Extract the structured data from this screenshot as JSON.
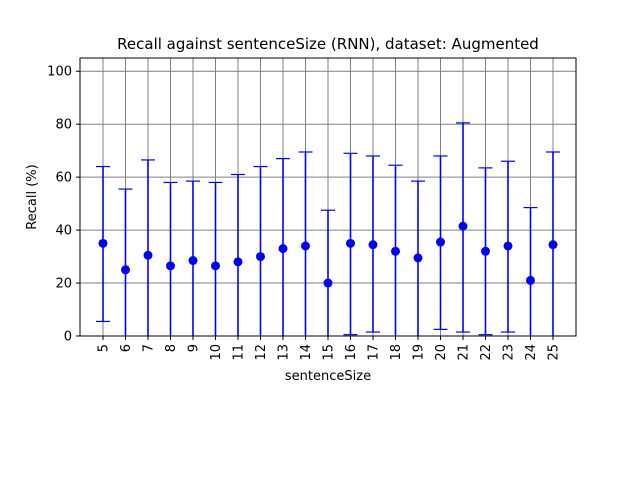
{
  "chart_data": {
    "type": "scatter",
    "title": "Recall against sentenceSize (RNN), dataset: Augmented",
    "xlabel": "sentenceSize",
    "ylabel": "Recall (%)",
    "ylim": [
      0,
      105
    ],
    "yticks": [
      0,
      20,
      40,
      60,
      80,
      100
    ],
    "grid": true,
    "categories": [
      "5",
      "6",
      "7",
      "8",
      "9",
      "10",
      "11",
      "12",
      "13",
      "14",
      "15",
      "16",
      "17",
      "18",
      "19",
      "20",
      "21",
      "22",
      "23",
      "24",
      "25"
    ],
    "values": [
      35,
      25,
      30.5,
      26.5,
      28.5,
      26.5,
      28,
      30,
      33,
      34,
      20,
      35,
      34.5,
      32,
      29.5,
      35.5,
      41.5,
      32,
      34,
      21,
      34.5
    ],
    "error_low": [
      5.5,
      0,
      0,
      0,
      0,
      0,
      0,
      0,
      0,
      0,
      0,
      0.5,
      1.5,
      0,
      0,
      2.5,
      1.5,
      0.5,
      1.5,
      0,
      0
    ],
    "error_high": [
      64,
      55.5,
      66.5,
      58,
      58.5,
      58,
      61,
      64,
      67,
      69.5,
      47.5,
      69,
      68,
      64.5,
      58.5,
      68,
      80.5,
      63.5,
      66,
      48.5,
      69.5
    ],
    "color": "#0000ff"
  }
}
